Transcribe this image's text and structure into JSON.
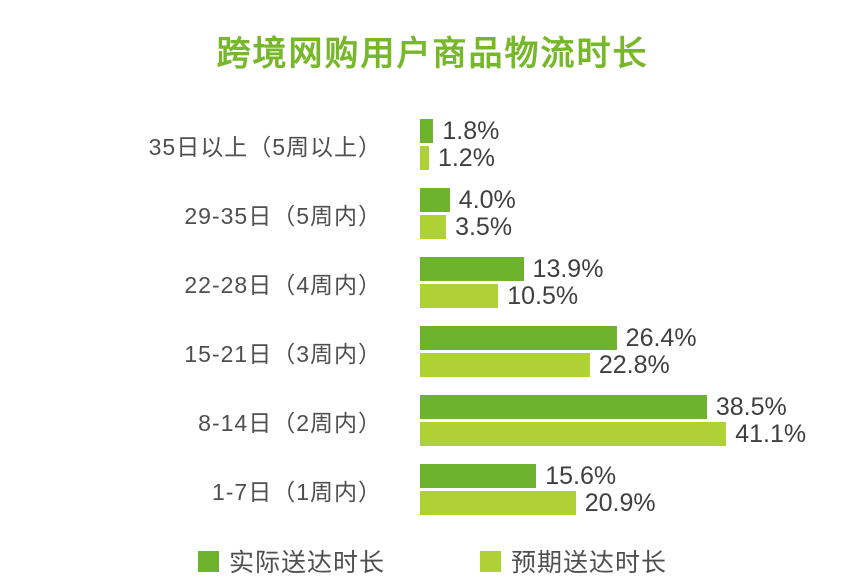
{
  "chart_data": {
    "type": "bar",
    "orientation": "horizontal",
    "title": "跨境网购用户商品物流时长",
    "categories": [
      "35日以上（5周以上）",
      "29-35日（5周内）",
      "22-28日（4周内）",
      "15-21日（3周内）",
      "8-14日（2周内）",
      "1-7日（1周内）"
    ],
    "series": [
      {
        "name": "实际送达时长",
        "color": "#6eb32d",
        "values": [
          1.8,
          4.0,
          13.9,
          26.4,
          38.5,
          15.6
        ]
      },
      {
        "name": "预期送达时长",
        "color": "#aed136",
        "values": [
          1.2,
          3.5,
          10.5,
          22.8,
          41.1,
          20.9
        ]
      }
    ],
    "value_suffix": "%",
    "xlim": [
      0,
      45
    ],
    "grid": false,
    "legend_position": "bottom"
  },
  "colors": {
    "title": "#76b82a",
    "category_text": "#4f4f4f",
    "value_text": "#3f3f3f",
    "legend_text": "#4f4f4f"
  }
}
